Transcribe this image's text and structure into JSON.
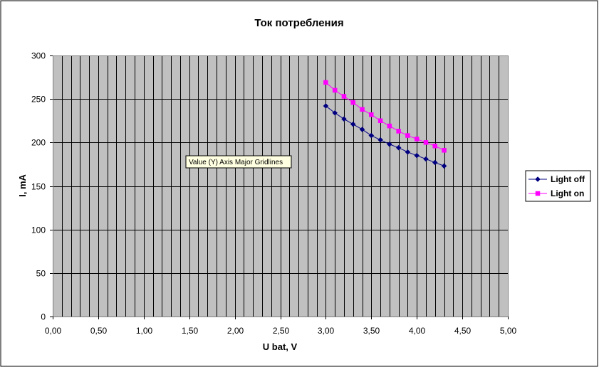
{
  "chart_data": {
    "type": "line",
    "title": "Ток потребления",
    "xlabel": "U bat, V",
    "ylabel": "I, mA",
    "xlim": [
      0,
      5
    ],
    "ylim": [
      0,
      300
    ],
    "x_ticks": [
      "0,00",
      "0,50",
      "1,00",
      "1,50",
      "2,00",
      "2,50",
      "3,00",
      "3,50",
      "4,00",
      "4,50",
      "5,00"
    ],
    "y_ticks": [
      "0",
      "50",
      "100",
      "150",
      "200",
      "250",
      "300"
    ],
    "x_minor_step": 0.1,
    "y_major_step": 50,
    "grid": true,
    "legend_position": "right",
    "plot_background": "#c0c0c0",
    "x": [
      3.0,
      3.1,
      3.2,
      3.3,
      3.4,
      3.5,
      3.6,
      3.7,
      3.8,
      3.9,
      4.0,
      4.1,
      4.2,
      4.3
    ],
    "series": [
      {
        "name": "Light off",
        "color": "#000080",
        "marker": "diamond",
        "values": [
          242,
          234,
          227,
          221,
          215,
          208,
          203,
          198,
          194,
          189,
          185,
          181,
          177,
          173
        ]
      },
      {
        "name": "Light on",
        "color": "#ff00ff",
        "marker": "square",
        "values": [
          269,
          260,
          253,
          246,
          238,
          232,
          225,
          219,
          213,
          208,
          204,
          200,
          196,
          191
        ]
      }
    ]
  },
  "tooltip": {
    "text": "Value (Y) Axis Major Gridlines"
  }
}
